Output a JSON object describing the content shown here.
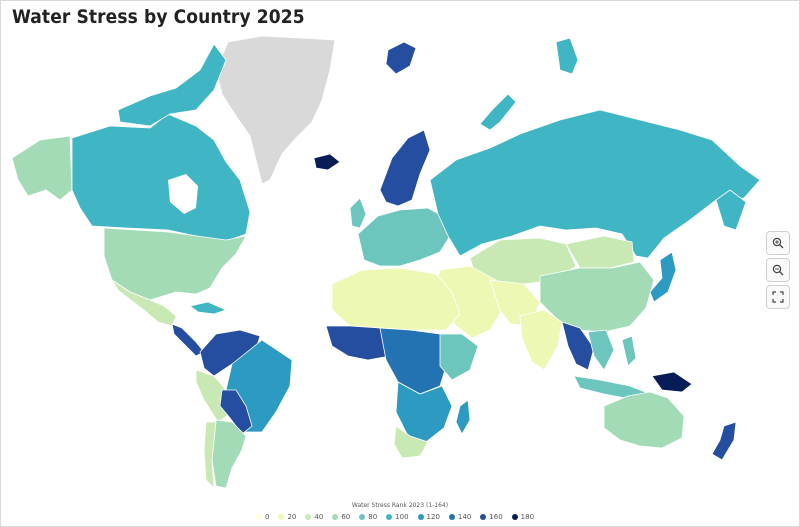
{
  "title": "Water Stress by Country 2025",
  "legend": {
    "title": "Water Stress Rank 2023 (1-164)",
    "items": [
      {
        "label": "0",
        "color": "#ffffd9"
      },
      {
        "label": "20",
        "color": "#eef8b5"
      },
      {
        "label": "40",
        "color": "#c8e9b4"
      },
      {
        "label": "60",
        "color": "#a3dbb7"
      },
      {
        "label": "80",
        "color": "#6dc6be"
      },
      {
        "label": "100",
        "color": "#40b6c4"
      },
      {
        "label": "120",
        "color": "#2c9ac1"
      },
      {
        "label": "140",
        "color": "#2372b1"
      },
      {
        "label": "160",
        "color": "#254ea1"
      },
      {
        "label": "180",
        "color": "#081d58"
      }
    ]
  },
  "controls": {
    "zoom_in": "zoom-in-icon",
    "zoom_out": "zoom-out-icon",
    "fullscreen": "fullscreen-icon"
  },
  "colors": {
    "no_data": "#d9d9d9",
    "border": "#ffffff"
  }
}
